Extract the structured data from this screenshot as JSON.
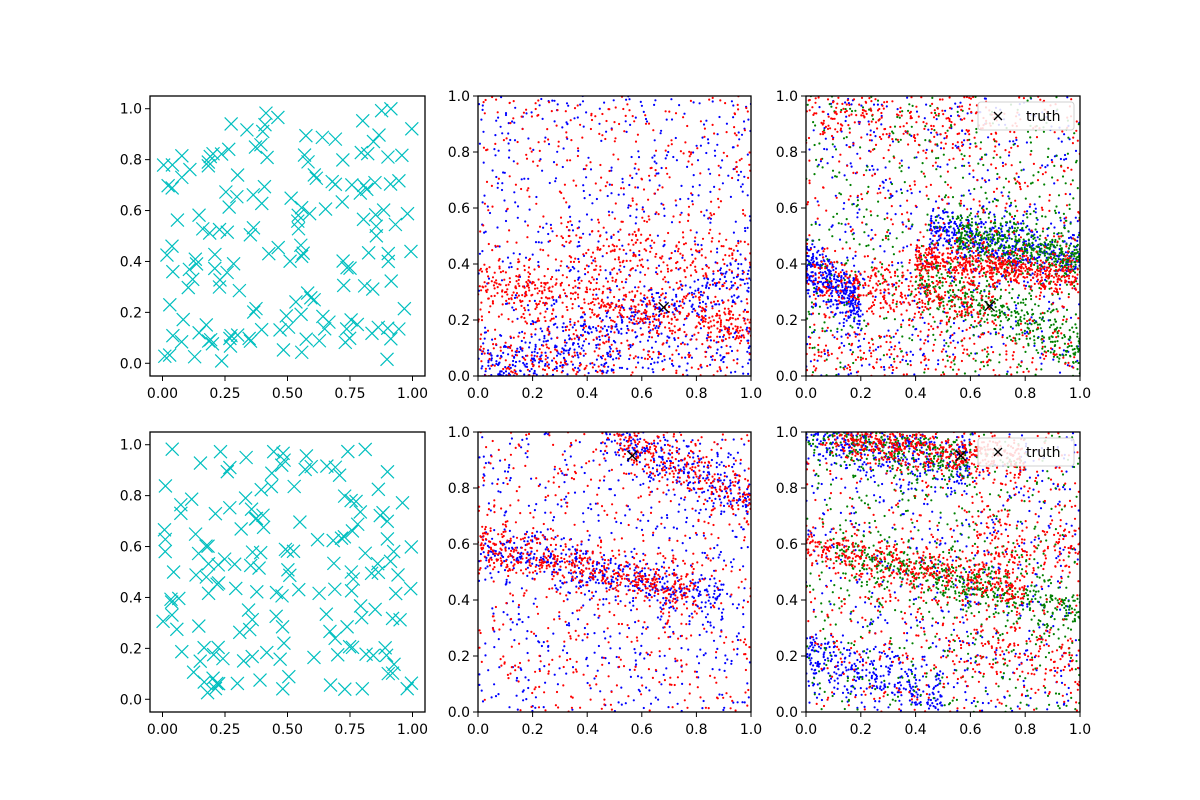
{
  "chart_data": [
    {
      "panel": "top-left",
      "type": "scatter",
      "marker": "x",
      "xlim": [
        -0.05,
        1.05
      ],
      "ylim": [
        -0.05,
        1.05
      ],
      "xticks": [
        "0.00",
        "0.25",
        "0.50",
        "0.75",
        "1.00"
      ],
      "yticks": [
        "0.0",
        "0.2",
        "0.4",
        "0.6",
        "0.8",
        "1.0"
      ],
      "series": [
        {
          "color": "#00bfbf",
          "points": 160,
          "distribution": "uniform"
        }
      ]
    },
    {
      "panel": "top-middle",
      "type": "scatter",
      "marker": "dot",
      "xlim": [
        0,
        1
      ],
      "ylim": [
        0,
        1
      ],
      "xticks": [
        "0.0",
        "0.2",
        "0.4",
        "0.6",
        "0.8",
        "1.0"
      ],
      "yticks": [
        "0.0",
        "0.2",
        "0.4",
        "0.6",
        "0.8",
        "1.0"
      ],
      "truth": {
        "x": 0.68,
        "y": 0.245
      },
      "series": [
        {
          "color": "#0000ff",
          "bands": [
            [
              0.0,
              0.0,
              1.0,
              0.36,
              0.45
            ],
            [
              0.0,
              0.0,
              1.0,
              0.08,
              0.2
            ]
          ],
          "x_range": [
            0.0,
            1.0
          ]
        },
        {
          "color": "#ff0000",
          "bands": [
            [
              0.0,
              0.33,
              1.0,
              0.17,
              0.55
            ],
            [
              0.0,
              0.04,
              0.5,
              0.0,
              0.15
            ],
            [
              0.0,
              0.19,
              1.0,
              0.02,
              0.1
            ],
            [
              0.3,
              0.47,
              1.0,
              0.4,
              0.2
            ]
          ],
          "x_range": [
            0.0,
            1.0
          ]
        }
      ]
    },
    {
      "panel": "top-right",
      "type": "scatter",
      "marker": "dot",
      "xlim": [
        0,
        1
      ],
      "ylim": [
        0,
        1
      ],
      "xticks": [
        "0.0",
        "0.2",
        "0.4",
        "0.6",
        "0.8",
        "1.0"
      ],
      "yticks": [
        "0.0",
        "0.2",
        "0.4",
        "0.6",
        "0.8",
        "1.0"
      ],
      "truth": {
        "x": 0.67,
        "y": 0.25
      },
      "legend": {
        "label": "truth",
        "position": "upper right"
      },
      "series": [
        {
          "color": "#0000ff",
          "bands": [
            [
              0.45,
              0.52,
              1.0,
              0.41,
              0.5
            ],
            [
              0.0,
              0.4,
              0.2,
              0.25,
              0.4
            ]
          ],
          "x_range": [
            0.0,
            1.0
          ]
        },
        {
          "color": "#008000",
          "bands": [
            [
              0.55,
              0.5,
              1.0,
              0.42,
              0.5
            ],
            [
              0.4,
              0.35,
              1.0,
              0.1,
              0.4
            ]
          ],
          "x_range": [
            0.0,
            1.0
          ]
        },
        {
          "color": "#ff0000",
          "bands": [
            [
              0.0,
              0.35,
              0.7,
              0.25,
              0.4
            ],
            [
              0.4,
              0.42,
              1.0,
              0.36,
              0.6
            ],
            [
              0.0,
              0.07,
              1.0,
              0.05,
              0.15
            ],
            [
              0.0,
              0.96,
              0.7,
              0.88,
              0.2
            ]
          ],
          "x_range": [
            0.0,
            1.0
          ]
        }
      ]
    },
    {
      "panel": "bottom-left",
      "type": "scatter",
      "marker": "x",
      "xlim": [
        -0.05,
        1.05
      ],
      "ylim": [
        -0.05,
        1.05
      ],
      "xticks": [
        "0.00",
        "0.25",
        "0.50",
        "0.75",
        "1.00"
      ],
      "yticks": [
        "0.0",
        "0.2",
        "0.4",
        "0.6",
        "0.8",
        "1.0"
      ],
      "series": [
        {
          "color": "#00bfbf",
          "points": 160,
          "distribution": "uniform"
        }
      ]
    },
    {
      "panel": "bottom-middle",
      "type": "scatter",
      "marker": "dot",
      "xlim": [
        0,
        1
      ],
      "ylim": [
        0,
        1
      ],
      "xticks": [
        "0.0",
        "0.2",
        "0.4",
        "0.6",
        "0.8",
        "1.0"
      ],
      "yticks": [
        "0.0",
        "0.2",
        "0.4",
        "0.6",
        "0.8",
        "1.0"
      ],
      "truth": {
        "x": 0.565,
        "y": 0.915
      },
      "series": [
        {
          "color": "#0000ff",
          "bands": [
            [
              0.0,
              0.6,
              0.9,
              0.4,
              0.45
            ],
            [
              0.45,
              1.02,
              1.0,
              0.75,
              0.3
            ]
          ],
          "x_range": [
            0.0,
            1.0
          ]
        },
        {
          "color": "#ff0000",
          "bands": [
            [
              0.0,
              0.6,
              0.8,
              0.43,
              0.5
            ],
            [
              0.45,
              1.02,
              1.0,
              0.75,
              0.3
            ]
          ],
          "x_range": [
            0.0,
            1.0
          ]
        }
      ]
    },
    {
      "panel": "bottom-right",
      "type": "scatter",
      "marker": "dot",
      "xlim": [
        0,
        1
      ],
      "ylim": [
        0,
        1
      ],
      "xticks": [
        "0.0",
        "0.2",
        "0.4",
        "0.6",
        "0.8",
        "1.0"
      ],
      "yticks": [
        "0.0",
        "0.2",
        "0.4",
        "0.6",
        "0.8",
        "1.0"
      ],
      "truth": {
        "x": 0.565,
        "y": 0.915
      },
      "legend": {
        "label": "truth",
        "position": "upper right"
      },
      "series": [
        {
          "color": "#0000ff",
          "bands": [
            [
              0.0,
              1.0,
              0.6,
              0.88,
              0.4
            ],
            [
              0.0,
              0.2,
              0.5,
              0.05,
              0.35
            ]
          ],
          "x_range": [
            0.0,
            1.0
          ]
        },
        {
          "color": "#008000",
          "bands": [
            [
              0.0,
              1.0,
              0.6,
              0.88,
              0.35
            ],
            [
              0.1,
              0.58,
              1.0,
              0.35,
              0.5
            ]
          ],
          "x_range": [
            0.0,
            1.0
          ]
        },
        {
          "color": "#ff0000",
          "bands": [
            [
              0.1,
              0.98,
              0.8,
              0.9,
              0.55
            ],
            [
              0.0,
              0.59,
              0.8,
              0.45,
              0.5
            ],
            [
              0.6,
              0.6,
              1.0,
              0.59,
              0.15
            ],
            [
              0.5,
              0.25,
              1.0,
              0.18,
              0.15
            ]
          ],
          "x_range": [
            0.0,
            1.0
          ]
        }
      ]
    }
  ]
}
